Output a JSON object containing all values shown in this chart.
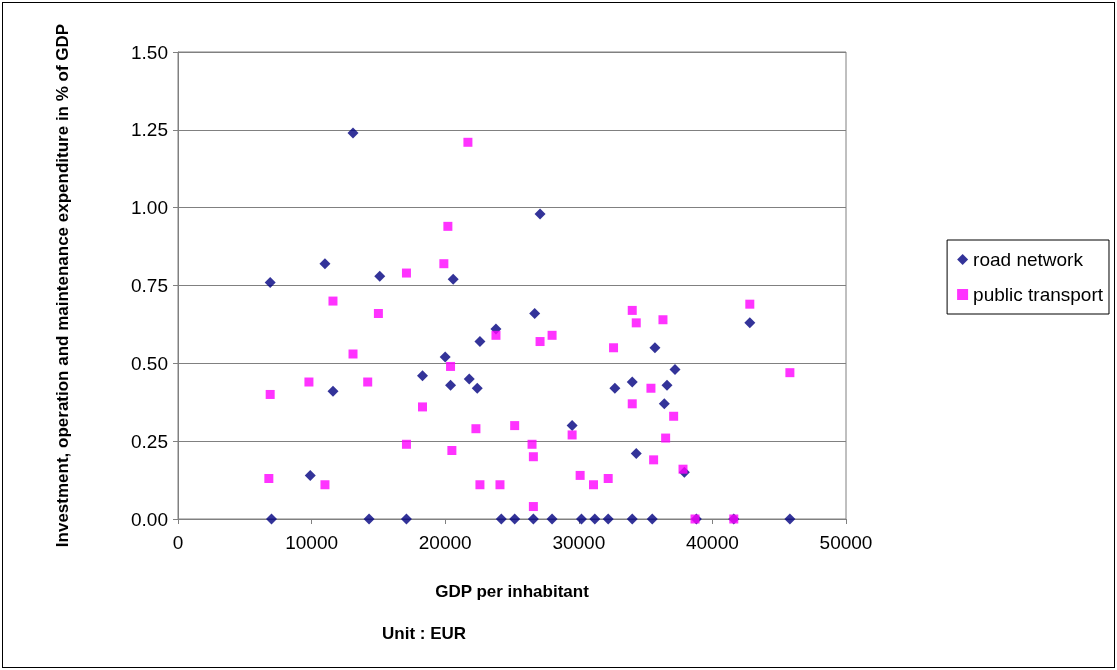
{
  "chart_data": {
    "type": "scatter",
    "xlabel": "GDP per inhabitant",
    "ylabel": "Investment, operation and maintenance expenditure in % of GDP",
    "annotations": [
      "Unit : EUR"
    ],
    "xlim": [
      0,
      50000
    ],
    "xticks": [
      0,
      10000,
      20000,
      30000,
      40000,
      50000
    ],
    "ylim": [
      0,
      1.5
    ],
    "yticks": [
      {
        "value": 0,
        "label": "0.00"
      },
      {
        "value": 0.25,
        "label": "0.25"
      },
      {
        "value": 0.5,
        "label": "0.50"
      },
      {
        "value": 0.75,
        "label": "0.75"
      },
      {
        "value": 1,
        "label": "1.00"
      },
      {
        "value": 1.25,
        "label": "1.25"
      },
      {
        "value": 1.5,
        "label": "1.50"
      }
    ],
    "grid": "y",
    "legend": "right",
    "series": [
      {
        "name": "road network",
        "color": "#000080",
        "marker": "diamond",
        "x": [
          13100,
          6900,
          11000,
          15100,
          20600,
          26700,
          23800,
          22600,
          20000,
          18300,
          11600,
          20400,
          21800,
          22400,
          9900,
          7000,
          14300,
          17100,
          24200,
          25200,
          26600,
          27100,
          28000,
          30200,
          31200,
          32200,
          34000,
          35500,
          38800,
          41600,
          45800,
          29500,
          32700,
          34000,
          35700,
          37200,
          36600,
          36400,
          34300,
          37900,
          42800
        ],
        "values": [
          1.24,
          0.76,
          0.82,
          0.78,
          0.77,
          0.66,
          0.61,
          0.57,
          0.52,
          0.46,
          0.41,
          0.43,
          0.45,
          0.42,
          0.14,
          0,
          0,
          0,
          0,
          0,
          0,
          0.98,
          0,
          0,
          0,
          0,
          0,
          0,
          0,
          0,
          0,
          0.3,
          0.42,
          0.44,
          0.55,
          0.48,
          0.43,
          0.37,
          0.21,
          0.15,
          0.63
        ]
      },
      {
        "name": "public transport",
        "color": "#ff00ff",
        "marker": "square",
        "x": [
          21700,
          20200,
          19900,
          17100,
          11600,
          15000,
          13100,
          9800,
          14200,
          6900,
          20400,
          18300,
          23800,
          22300,
          25200,
          17100,
          20500,
          6800,
          11000,
          22600,
          24100,
          26500,
          26600,
          26600,
          27100,
          28000,
          32600,
          34000,
          34300,
          36300,
          42800,
          45800,
          35400,
          34000,
          37100,
          36500,
          29500,
          35600,
          37800,
          30100,
          31100,
          32200,
          38700,
          41600
        ],
        "values": [
          1.21,
          0.94,
          0.82,
          0.79,
          0.7,
          0.66,
          0.53,
          0.44,
          0.44,
          0.4,
          0.49,
          0.36,
          0.59,
          0.29,
          0.3,
          0.24,
          0.22,
          0.13,
          0.11,
          0.11,
          0.11,
          0.24,
          0.2,
          0.04,
          0.57,
          0.59,
          0.55,
          0.67,
          0.63,
          0.64,
          0.69,
          0.47,
          0.42,
          0.37,
          0.33,
          0.26,
          0.27,
          0.19,
          0.16,
          0.14,
          0.11,
          0.13,
          0,
          0
        ]
      }
    ]
  }
}
